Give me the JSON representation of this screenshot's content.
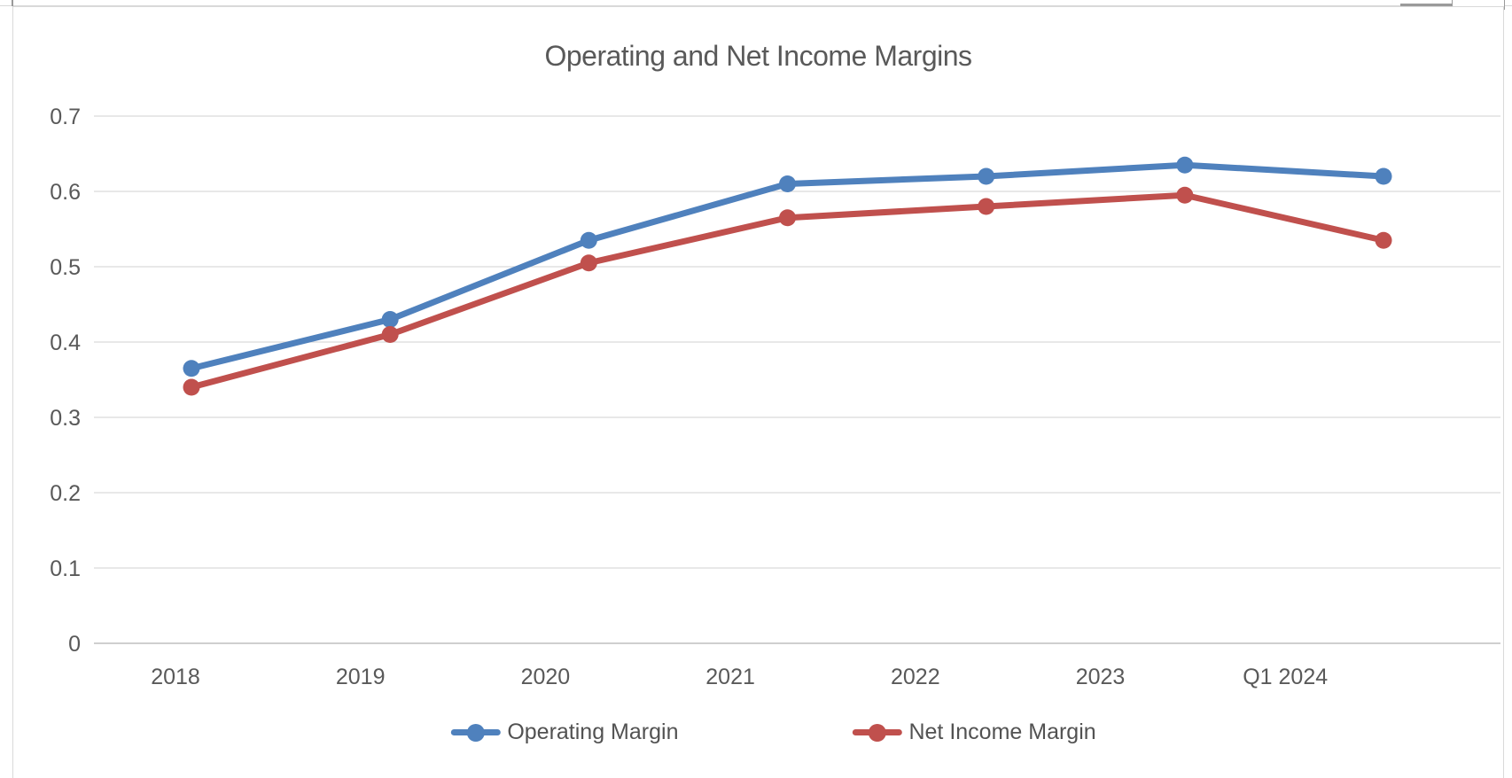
{
  "chart_data": {
    "type": "line",
    "title": "Operating and Net Income Margins",
    "categories": [
      "2018",
      "2019",
      "2020",
      "2021",
      "2022",
      "2023",
      "Q1 2024"
    ],
    "series": [
      {
        "name": "Operating Margin",
        "color": "#4F81BD",
        "values": [
          0.365,
          0.43,
          0.535,
          0.61,
          0.62,
          0.635,
          0.62
        ]
      },
      {
        "name": "Net Income Margin",
        "color": "#C0504D",
        "values": [
          0.34,
          0.41,
          0.505,
          0.565,
          0.58,
          0.595,
          0.535
        ]
      }
    ],
    "ylim": [
      0,
      0.7
    ],
    "ytick_step": 0.1,
    "ytick_labels": [
      "0",
      "0.1",
      "0.2",
      "0.3",
      "0.4",
      "0.5",
      "0.6",
      "0.7"
    ],
    "xlabel": "",
    "ylabel": "",
    "grid": true,
    "legend_position": "bottom",
    "marker": "circle",
    "text_color": "#595959",
    "grid_color": "#d9d9d9",
    "axis_color": "#bfbfbf"
  }
}
